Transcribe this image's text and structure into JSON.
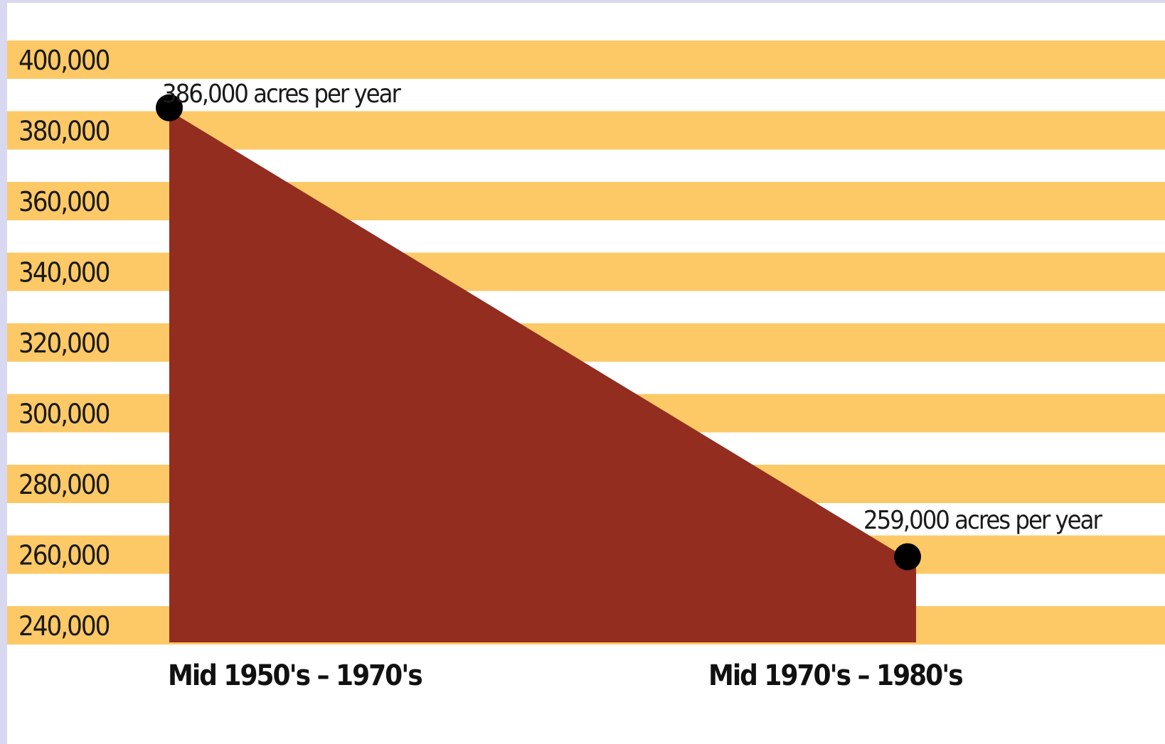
{
  "colors": {
    "band": "#fdc966",
    "background": "#ffffff",
    "area_fill": "#922d20",
    "point": "#000000",
    "text": "#1a1a1a"
  },
  "chart_data": {
    "type": "area",
    "title": "",
    "xlabel": "",
    "ylabel": "",
    "categories": [
      "Mid 1950's – 1970's",
      "Mid 1970's – 1980's"
    ],
    "values": [
      386000,
      259000
    ],
    "ylim": [
      230000,
      410000
    ],
    "yticks": [
      400000,
      380000,
      360000,
      340000,
      320000,
      300000,
      280000,
      260000,
      240000
    ],
    "ytick_labels": [
      "400,000",
      "380,000",
      "360,000",
      "340,000",
      "320,000",
      "300,000",
      "280,000",
      "260,000",
      "240,000"
    ],
    "annotations": [
      "386,000 acres per year",
      "259,000 acres per year"
    ],
    "grid": "alternating horizontal bands",
    "legend": "none"
  }
}
